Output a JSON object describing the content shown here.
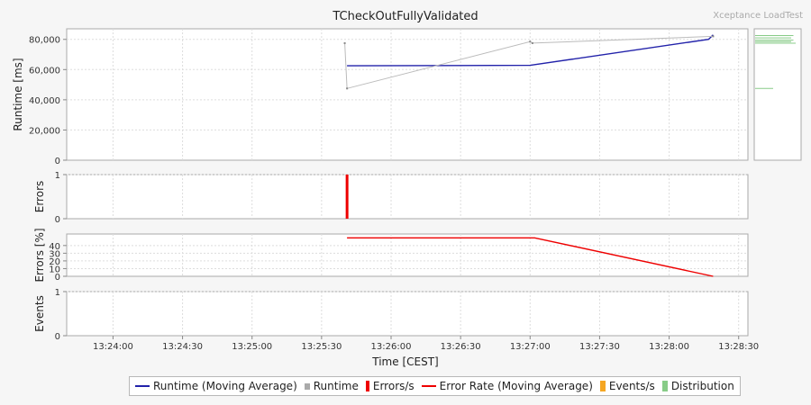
{
  "brand": "Xceptance LoadTest",
  "chart_data": {
    "type": "line",
    "title": "TCheckOutFullyValidated",
    "xlabel": "Time [CEST]",
    "x_ticks": [
      "13:24:00",
      "13:24:30",
      "13:25:00",
      "13:25:30",
      "13:26:00",
      "13:26:30",
      "13:27:00",
      "13:27:30",
      "13:28:00",
      "13:28:30"
    ],
    "x_range": [
      "13:23:40",
      "13:28:34"
    ],
    "grid": true,
    "legend_position": "bottom",
    "panels": [
      {
        "id": "runtime",
        "ylabel": "Runtime [ms]",
        "ylim": [
          0,
          87000
        ],
        "y_ticks": [
          0,
          20000,
          40000,
          60000,
          80000
        ],
        "y_tick_labels": [
          "0",
          "20,000",
          "40,000",
          "60,000",
          "80,000"
        ],
        "series": [
          {
            "name": "Runtime (Moving Average)",
            "color": "#2222aa",
            "points": [
              [
                "13:25:41",
                62500
              ],
              [
                "13:27:00",
                62800
              ],
              [
                "13:28:17",
                80000
              ],
              [
                "13:28:19",
                83000
              ]
            ]
          },
          {
            "name": "Runtime",
            "color": "#bbbbbb",
            "points": [
              [
                "13:25:40",
                77500
              ],
              [
                "13:25:41",
                47500
              ],
              [
                "13:27:00",
                78500
              ],
              [
                "13:27:01",
                77500
              ],
              [
                "13:28:19",
                82000
              ]
            ]
          }
        ],
        "distribution": {
          "name": "Distribution",
          "color": "#88cc88",
          "bins": [
            {
              "value": 47500,
              "length": 0.4
            },
            {
              "value": 77500,
              "length": 0.9
            },
            {
              "value": 78500,
              "length": 0.8
            },
            {
              "value": 79500,
              "length": 0.85
            },
            {
              "value": 81000,
              "length": 0.8
            },
            {
              "value": 82500,
              "length": 0.85
            }
          ]
        }
      },
      {
        "id": "errors",
        "ylabel": "Errors",
        "ylim": [
          0,
          1
        ],
        "y_ticks": [
          0,
          1
        ],
        "y_tick_labels": [
          "0",
          "1"
        ],
        "series": [
          {
            "name": "Errors/s",
            "color": "#ee0000",
            "bars": [
              [
                "13:25:41",
                1
              ]
            ]
          }
        ]
      },
      {
        "id": "error-rate",
        "ylabel": "Errors [%]",
        "ylim": [
          0,
          55
        ],
        "y_ticks": [
          0,
          10,
          20,
          30,
          40
        ],
        "y_tick_labels": [
          "0",
          "10",
          "20",
          "30",
          "40"
        ],
        "series": [
          {
            "name": "Error Rate (Moving Average)",
            "color": "#ee0000",
            "points": [
              [
                "13:25:41",
                50
              ],
              [
                "13:27:02",
                50
              ],
              [
                "13:28:19",
                0
              ]
            ]
          }
        ]
      },
      {
        "id": "events",
        "ylabel": "Events",
        "ylim": [
          0,
          1
        ],
        "y_ticks": [
          0,
          1
        ],
        "y_tick_labels": [
          "0",
          "1"
        ],
        "series": []
      }
    ],
    "legend": [
      {
        "label": "Runtime (Moving Average)",
        "color": "#2222aa",
        "shape": "line"
      },
      {
        "label": "Runtime",
        "color": "#aaaaaa",
        "shape": "square"
      },
      {
        "label": "Errors/s",
        "color": "#ee0000",
        "shape": "bar"
      },
      {
        "label": "Error Rate (Moving Average)",
        "color": "#ee0000",
        "shape": "line"
      },
      {
        "label": "Events/s",
        "color": "#f5a623",
        "shape": "block"
      },
      {
        "label": "Distribution",
        "color": "#88cc88",
        "shape": "block"
      }
    ]
  }
}
